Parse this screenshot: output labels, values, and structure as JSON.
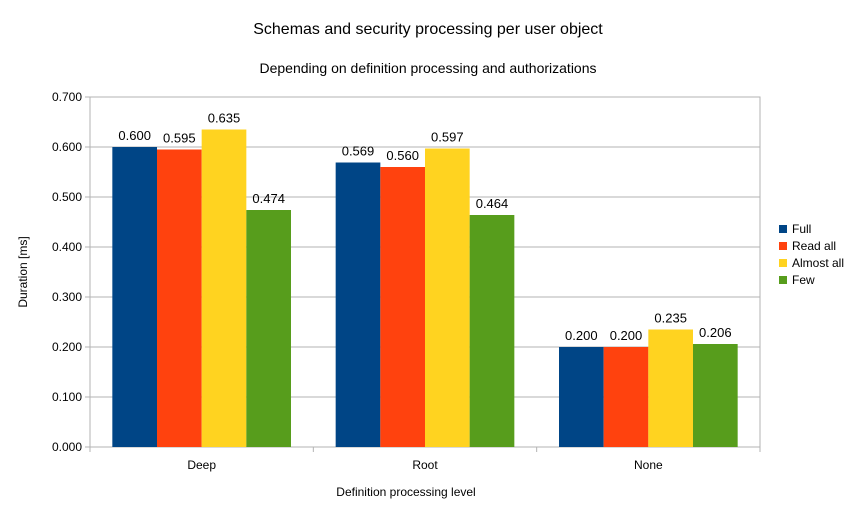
{
  "chart_data": {
    "type": "bar",
    "title": "Schemas and security processing per user object",
    "subtitle": "Depending on definition processing and authorizations",
    "xlabel": "Definition processing level",
    "ylabel": "Duration [ms]",
    "categories": [
      "Deep",
      "Root",
      "None"
    ],
    "series": [
      {
        "name": "Full",
        "color": "#004586",
        "values": [
          0.6,
          0.569,
          0.2
        ],
        "labels": [
          "0.600",
          "0.569",
          "0.200"
        ]
      },
      {
        "name": "Read all",
        "color": "#ff420e",
        "values": [
          0.595,
          0.56,
          0.2
        ],
        "labels": [
          "0.595",
          "0.560",
          "0.200"
        ]
      },
      {
        "name": "Almost all",
        "color": "#ffd320",
        "values": [
          0.635,
          0.597,
          0.235
        ],
        "labels": [
          "0.635",
          "0.597",
          "0.235"
        ]
      },
      {
        "name": "Few",
        "color": "#579d1c",
        "values": [
          0.474,
          0.464,
          0.206
        ],
        "labels": [
          "0.474",
          "0.464",
          "0.206"
        ]
      }
    ],
    "ylim": [
      0,
      0.7
    ],
    "yticks": [
      0,
      0.1,
      0.2,
      0.3,
      0.4,
      0.5,
      0.6,
      0.7
    ],
    "ytick_labels": [
      "0.000",
      "0.100",
      "0.200",
      "0.300",
      "0.400",
      "0.500",
      "0.600",
      "0.700"
    ],
    "grid": true,
    "legend_position": "right"
  }
}
